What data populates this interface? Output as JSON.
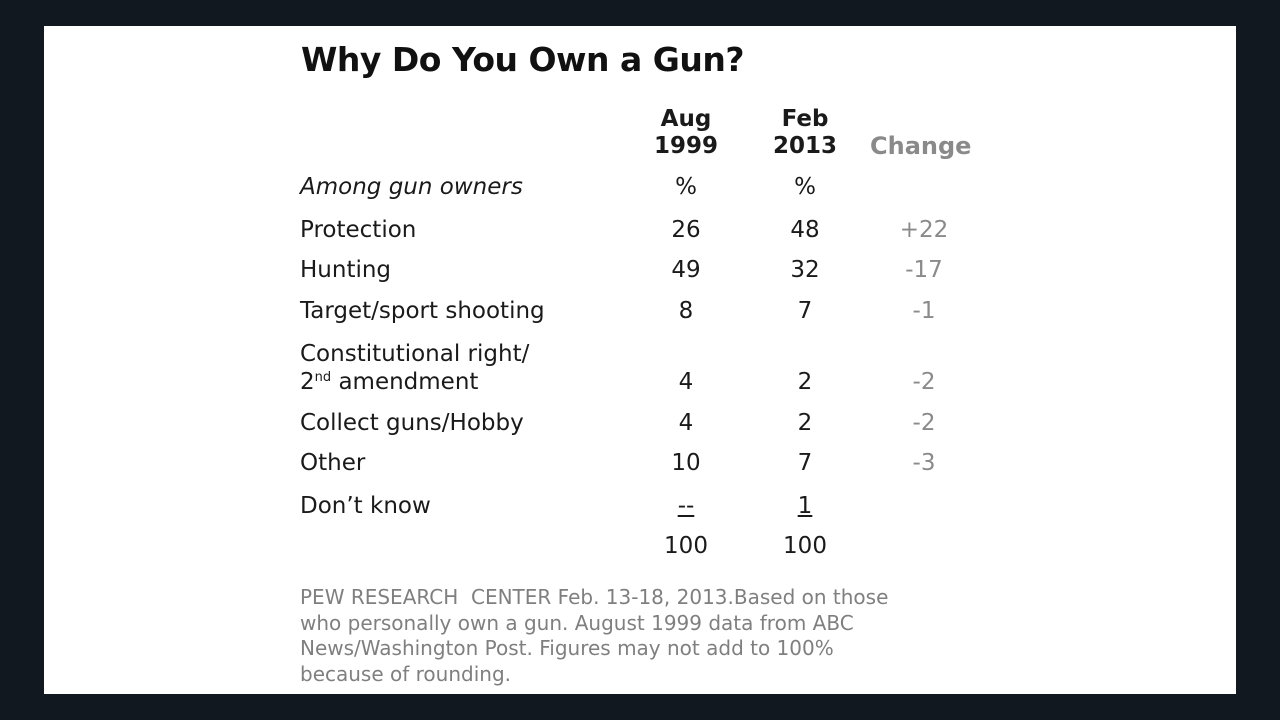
{
  "chart_data": {
    "type": "table",
    "title": "Why Do You Own a Gun?",
    "columns": [
      {
        "line1": "Aug",
        "line2": "1999"
      },
      {
        "line1": "Feb",
        "line2": "2013"
      }
    ],
    "change_header": "Change",
    "subheader": {
      "label": "Among gun owners",
      "v1999": "%",
      "v2013": "%"
    },
    "rows": [
      {
        "label": "Protection",
        "v1999": "26",
        "v2013": "48",
        "change": "+22"
      },
      {
        "label": "Hunting",
        "v1999": "49",
        "v2013": "32",
        "change": "-17"
      },
      {
        "label": "Target/sport shooting",
        "v1999": "8",
        "v2013": "7",
        "change": "-1"
      },
      {
        "label_line1": "Constitutional right/",
        "label_line2_pre": "2",
        "label_line2_sup": "nd",
        "label_line2_post": " amendment",
        "v1999": "4",
        "v2013": "2",
        "change": "-2"
      },
      {
        "label": "Collect guns/Hobby",
        "v1999": "4",
        "v2013": "2",
        "change": "-2"
      },
      {
        "label": "Other",
        "v1999": "10",
        "v2013": "7",
        "change": "-3"
      },
      {
        "label": "Don’t know",
        "v1999": "--",
        "v2013": "1",
        "change": ""
      }
    ],
    "totals": {
      "v1999": "100",
      "v2013": "100"
    },
    "note_lines": [
      "PEW RESEARCH  CENTER Feb. 13-18, 2013.Based on those",
      "who personally own a gun. August 1999 data from ABC",
      "News/Washington Post. Figures may not add to 100%",
      "because of rounding."
    ]
  }
}
